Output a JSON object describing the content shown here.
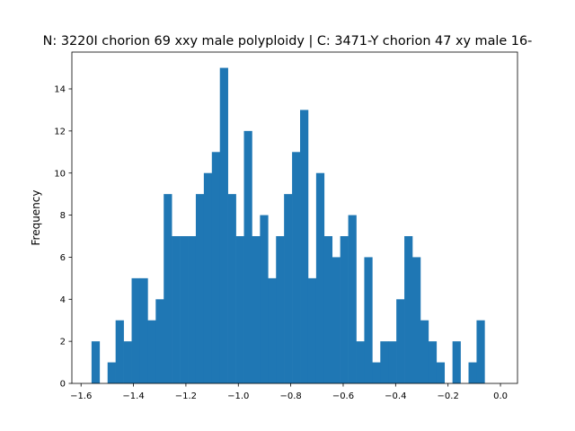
{
  "chart_data": {
    "type": "bar",
    "title": "N: 3220I chorion 69 xxy male polyploidy | C: 3471-Y chorion 47 xy male 16-",
    "xlabel": "",
    "ylabel": "Frequency",
    "xlim": [
      -1.635,
      0.065
    ],
    "ylim": [
      0,
      15.75
    ],
    "bin_start": -1.56,
    "bin_width": 0.0306,
    "counts": [
      2,
      0,
      1,
      3,
      2,
      5,
      5,
      3,
      4,
      9,
      7,
      7,
      7,
      9,
      10,
      11,
      15,
      9,
      7,
      12,
      7,
      8,
      5,
      7,
      9,
      11,
      13,
      5,
      10,
      7,
      6,
      7,
      8,
      2,
      6,
      1,
      2,
      2,
      4,
      7,
      6,
      3,
      2,
      1,
      0,
      2,
      0,
      1,
      3
    ],
    "x_ticks": [
      {
        "value": -1.6,
        "label": "−1.6"
      },
      {
        "value": -1.4,
        "label": "−1.4"
      },
      {
        "value": -1.2,
        "label": "−1.2"
      },
      {
        "value": -1.0,
        "label": "−1.0"
      },
      {
        "value": -0.8,
        "label": "−0.8"
      },
      {
        "value": -0.6,
        "label": "−0.6"
      },
      {
        "value": -0.4,
        "label": "−0.4"
      },
      {
        "value": -0.2,
        "label": "−0.2"
      },
      {
        "value": 0.0,
        "label": "0.0"
      }
    ],
    "y_ticks": [
      {
        "value": 0,
        "label": "0"
      },
      {
        "value": 2,
        "label": "2"
      },
      {
        "value": 4,
        "label": "4"
      },
      {
        "value": 6,
        "label": "6"
      },
      {
        "value": 8,
        "label": "8"
      },
      {
        "value": 10,
        "label": "10"
      },
      {
        "value": 12,
        "label": "12"
      },
      {
        "value": 14,
        "label": "14"
      }
    ],
    "bar_color": "#1f77b4",
    "grid": false,
    "legend": "none"
  }
}
